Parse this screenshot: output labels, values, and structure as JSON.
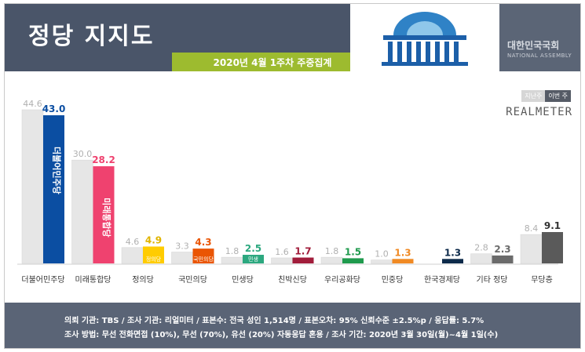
{
  "title": "정당 지지도",
  "subtitle": "2020년 4월 1주차 주중집계",
  "logo": {
    "name": "대한민국국회",
    "en": "NATIONAL ASSEMBLY"
  },
  "legend": {
    "prev": "지난주",
    "curr": "이번 주"
  },
  "brand": "REALMETER",
  "footer": {
    "line1": "의뢰 기관: TBS / 조사 기관: 리얼미터 / 표본수: 전국 성인 1,514명 / 표본오차: 95% 신뢰수준 ±2.5%p / 응답률: 5.7%",
    "line2": "조사 방법: 무선 전화면접 (10%), 무선 (70%), 유선 (20%) 자동응답 혼용 / 조사 기간: 2020년 3월 30일(월)~4월 1일(수)"
  },
  "chart_data": {
    "type": "bar",
    "title": "정당 지지도",
    "categories": [
      "더불어민주당",
      "미래통합당",
      "정의당",
      "국민의당",
      "민생당",
      "친박신당",
      "우리공화당",
      "민중당",
      "한국경제당",
      "기타 정당",
      "무당층"
    ],
    "series": [
      {
        "name": "지난주",
        "values": [
          44.6,
          30.0,
          4.6,
          3.3,
          1.8,
          1.6,
          1.8,
          1.0,
          null,
          2.8,
          8.4
        ]
      },
      {
        "name": "이번 주",
        "values": [
          43.0,
          28.2,
          4.9,
          4.3,
          2.5,
          1.7,
          1.5,
          1.3,
          1.3,
          2.3,
          9.1
        ]
      }
    ],
    "prev_labels": [
      "44.6",
      "30.0",
      "4.6",
      "3.3",
      "1.8",
      "1.6",
      "1.8",
      "1.0",
      "",
      "2.8",
      "8.4"
    ],
    "curr_labels": [
      "43.0",
      "28.2",
      "4.9",
      "4.3",
      "2.5",
      "1.7",
      "1.5",
      "1.3",
      "1.3",
      "2.3",
      "9.1"
    ],
    "bar_colors": [
      "#0b4ea2",
      "#ef426f",
      "#ffcc00",
      "#ea5504",
      "#2ca87f",
      "#a11d3b",
      "#1f9a4d",
      "#f08a24",
      "#0d2a4a",
      "#6b6b6b",
      "#5a5a5a"
    ],
    "label_colors": [
      "#0b4ea2",
      "#ef426f",
      "#e0b400",
      "#ea5504",
      "#2ca87f",
      "#a11d3b",
      "#1f9a4d",
      "#f08a24",
      "#0d2a4a",
      "#6b6b6b",
      "#333333"
    ],
    "bar_texts": [
      "더불어민주당",
      "미래통합당",
      "정의당",
      "국민의당",
      "민생",
      "",
      "",
      "",
      "",
      "",
      ""
    ],
    "prev_color": "#e6e6e6",
    "ylim": [
      0,
      50
    ],
    "legend_position": "top-right"
  }
}
